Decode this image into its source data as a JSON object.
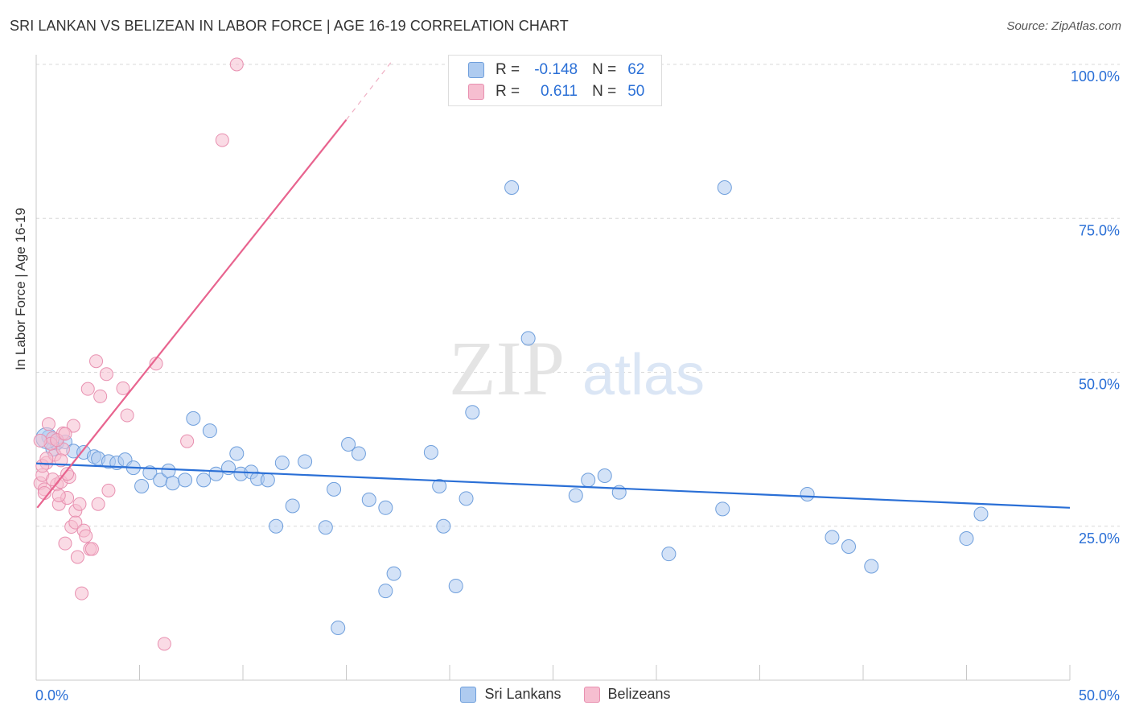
{
  "title": "SRI LANKAN VS BELIZEAN IN LABOR FORCE | AGE 16-19 CORRELATION CHART",
  "source": "Source: ZipAtlas.com",
  "watermark": {
    "zip": "ZIP",
    "atlas": "atlas"
  },
  "legend": {
    "r_label": "R =",
    "n_label": "N =",
    "rows": [
      {
        "name": "Sri Lankans",
        "r": "-0.148",
        "n": "62"
      },
      {
        "name": "Belizeans",
        "r": "0.611",
        "n": "50"
      }
    ]
  },
  "colors": {
    "sri_fill": "#aecbf0",
    "sri_stroke": "#6f9fdc",
    "sri_line": "#2a6fd6",
    "bel_fill": "#f6bed0",
    "bel_stroke": "#e890b0",
    "bel_line": "#e8648f",
    "axis_text": "#2a6fd6",
    "grid": "#d8d8d8"
  },
  "chart_data": {
    "type": "scatter",
    "title": "SRI LANKAN VS BELIZEAN IN LABOR FORCE | AGE 16-19 CORRELATION CHART",
    "xlabel": "",
    "ylabel": "In Labor Force | Age 16-19",
    "xlim": [
      0,
      50
    ],
    "ylim": [
      0,
      102
    ],
    "x_tick_labels": [
      "0.0%",
      "50.0%"
    ],
    "y_tick_labels": [
      {
        "value": 25,
        "label": "25.0%"
      },
      {
        "value": 50,
        "label": "50.0%"
      },
      {
        "value": 75,
        "label": "75.0%"
      },
      {
        "value": 100,
        "label": "100.0%"
      }
    ],
    "series": [
      {
        "name": "Sri Lankans",
        "trend": {
          "x": [
            0,
            50
          ],
          "y": [
            35.2,
            28.0
          ]
        },
        "points": [
          [
            0.6,
            39.5
          ],
          [
            0.8,
            37.5
          ],
          [
            1.0,
            38.5
          ],
          [
            1.4,
            38.7
          ],
          [
            1.8,
            37.2
          ],
          [
            2.3,
            37.0
          ],
          [
            2.8,
            36.3
          ],
          [
            3.0,
            36.0
          ],
          [
            3.5,
            35.5
          ],
          [
            3.9,
            35.3
          ],
          [
            4.3,
            35.8
          ],
          [
            4.7,
            34.5
          ],
          [
            5.1,
            31.5
          ],
          [
            5.5,
            33.7
          ],
          [
            6.0,
            32.5
          ],
          [
            6.4,
            34.0
          ],
          [
            6.6,
            32.0
          ],
          [
            7.2,
            32.5
          ],
          [
            7.6,
            42.5
          ],
          [
            8.1,
            32.5
          ],
          [
            8.4,
            40.5
          ],
          [
            8.7,
            33.5
          ],
          [
            9.3,
            34.5
          ],
          [
            9.7,
            36.8
          ],
          [
            9.9,
            33.5
          ],
          [
            10.4,
            33.8
          ],
          [
            10.7,
            32.7
          ],
          [
            11.2,
            32.5
          ],
          [
            11.6,
            25.0
          ],
          [
            11.9,
            35.3
          ],
          [
            12.4,
            28.3
          ],
          [
            13.0,
            35.5
          ],
          [
            14.0,
            24.8
          ],
          [
            14.4,
            31.0
          ],
          [
            14.6,
            8.5
          ],
          [
            15.1,
            38.3
          ],
          [
            15.6,
            36.8
          ],
          [
            16.1,
            29.3
          ],
          [
            16.9,
            14.5
          ],
          [
            16.9,
            28.0
          ],
          [
            17.3,
            17.3
          ],
          [
            19.1,
            37.0
          ],
          [
            19.5,
            31.5
          ],
          [
            19.7,
            25.0
          ],
          [
            20.3,
            15.3
          ],
          [
            20.8,
            29.5
          ],
          [
            21.1,
            43.5
          ],
          [
            23.0,
            80.0
          ],
          [
            23.8,
            55.5
          ],
          [
            26.1,
            30.0
          ],
          [
            26.7,
            32.5
          ],
          [
            27.5,
            33.2
          ],
          [
            28.2,
            30.5
          ],
          [
            30.6,
            20.5
          ],
          [
            33.3,
            80.0
          ],
          [
            33.2,
            27.8
          ],
          [
            37.3,
            30.2
          ],
          [
            38.5,
            23.2
          ],
          [
            39.3,
            21.7
          ],
          [
            40.4,
            18.5
          ],
          [
            45.0,
            23.0
          ],
          [
            45.7,
            27.0
          ]
        ]
      },
      {
        "name": "Belizeans",
        "trend": {
          "x": [
            0.05,
            15.0
          ],
          "y": [
            28.0,
            91.0
          ]
        },
        "trend_dashed": {
          "x": [
            15.0,
            17.2
          ],
          "y": [
            91.0,
            100.5
          ]
        },
        "points": [
          [
            0.2,
            32.0
          ],
          [
            0.3,
            33.3
          ],
          [
            0.4,
            31.0
          ],
          [
            0.5,
            35.3
          ],
          [
            0.6,
            41.6
          ],
          [
            0.8,
            39.3
          ],
          [
            0.9,
            36.6
          ],
          [
            1.0,
            31.8
          ],
          [
            1.1,
            28.6
          ],
          [
            1.2,
            32.2
          ],
          [
            1.3,
            40.1
          ],
          [
            1.3,
            37.5
          ],
          [
            1.4,
            22.2
          ],
          [
            1.5,
            29.6
          ],
          [
            1.6,
            33.0
          ],
          [
            1.7,
            24.9
          ],
          [
            1.8,
            41.3
          ],
          [
            1.9,
            27.5
          ],
          [
            1.9,
            25.6
          ],
          [
            2.0,
            20.0
          ],
          [
            2.1,
            28.6
          ],
          [
            2.2,
            14.1
          ],
          [
            2.3,
            24.3
          ],
          [
            2.4,
            23.4
          ],
          [
            2.5,
            47.3
          ],
          [
            2.6,
            21.3
          ],
          [
            2.7,
            21.3
          ],
          [
            2.9,
            51.8
          ],
          [
            3.0,
            28.6
          ],
          [
            3.1,
            46.1
          ],
          [
            3.4,
            49.7
          ],
          [
            3.5,
            30.8
          ],
          [
            4.2,
            47.4
          ],
          [
            4.4,
            43.0
          ],
          [
            5.8,
            51.4
          ],
          [
            6.2,
            5.9
          ],
          [
            7.3,
            38.8
          ],
          [
            9.0,
            87.7
          ],
          [
            9.7,
            100.0
          ],
          [
            0.3,
            34.8
          ],
          [
            0.4,
            30.4
          ],
          [
            0.5,
            36.0
          ],
          [
            0.7,
            38.4
          ],
          [
            0.8,
            32.6
          ],
          [
            1.0,
            39.0
          ],
          [
            1.1,
            30.0
          ],
          [
            1.2,
            35.7
          ],
          [
            1.4,
            40.0
          ],
          [
            1.5,
            33.5
          ],
          [
            0.2,
            38.9
          ]
        ]
      }
    ]
  }
}
